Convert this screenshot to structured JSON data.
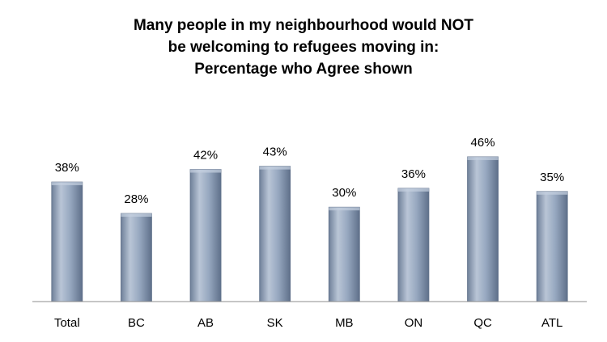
{
  "chart_data": {
    "type": "bar",
    "title_lines": [
      "Many people in my neighbourhood would NOT",
      "be welcoming to refugees moving in:",
      "Percentage who Agree shown"
    ],
    "categories": [
      "Total",
      "BC",
      "AB",
      "SK",
      "MB",
      "ON",
      "QC",
      "ATL"
    ],
    "values": [
      38,
      28,
      42,
      43,
      30,
      36,
      46,
      35
    ],
    "value_labels": [
      "38%",
      "28%",
      "42%",
      "43%",
      "30%",
      "36%",
      "46%",
      "35%"
    ],
    "xlabel": "",
    "ylabel": "",
    "ylim": [
      0,
      65
    ],
    "grid": false,
    "legend": "none",
    "bar_color": "#8a9bb5",
    "bar_highlight": "#c5d0e0",
    "bar_shadow": "#5f708a"
  }
}
